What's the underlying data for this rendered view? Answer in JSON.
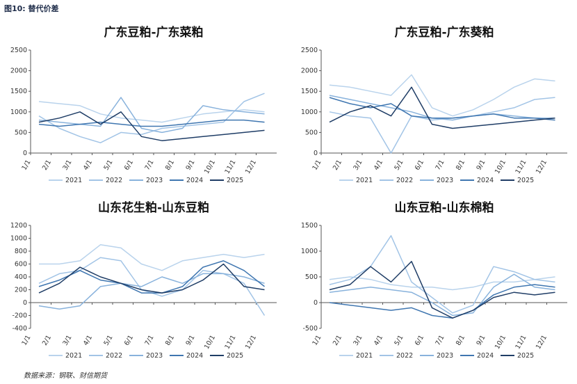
{
  "figure": {
    "caption": "图10: 替代价差",
    "source": "数据来源：钢联、财信期货"
  },
  "colors": {
    "s2021": "#b9d3ec",
    "s2022": "#a2c4e6",
    "s2023": "#88b2dc",
    "s2024": "#3f76b0",
    "s2025": "#1f3d66"
  },
  "chart_data": [
    {
      "type": "line",
      "title": "广东豆粕-广东菜粕",
      "categories": [
        "1/1",
        "2/1",
        "3/1",
        "4/1",
        "5/1",
        "6/1",
        "7/1",
        "8/1",
        "9/1",
        "10/1",
        "11/1",
        "12/1"
      ],
      "ylim": [
        0,
        2500
      ],
      "yticks": [
        0,
        500,
        1000,
        1500,
        2000,
        2500
      ],
      "series": [
        {
          "name": "2021",
          "values": [
            1250,
            1200,
            1150,
            950,
            850,
            800,
            750,
            850,
            950,
            1000,
            1050,
            1000
          ]
        },
        {
          "name": "2022",
          "values": [
            900,
            600,
            400,
            250,
            500,
            450,
            600,
            650,
            700,
            750,
            1250,
            1450
          ]
        },
        {
          "name": "2023",
          "values": [
            800,
            750,
            700,
            650,
            1350,
            600,
            500,
            600,
            1150,
            1050,
            1000,
            950
          ]
        },
        {
          "name": "2024",
          "values": [
            700,
            650,
            700,
            750,
            700,
            650,
            650,
            700,
            750,
            800,
            800,
            750
          ]
        },
        {
          "name": "2025",
          "values": [
            750,
            850,
            1000,
            700,
            1000,
            400,
            300,
            350,
            400,
            450,
            500,
            550
          ]
        }
      ]
    },
    {
      "type": "line",
      "title": "广东豆粕-广东葵粕",
      "categories": [
        "1/1",
        "2/1",
        "3/1",
        "4/1",
        "5/1",
        "6/1",
        "7/1",
        "8/1",
        "9/1",
        "10/1",
        "11/1",
        "12/1"
      ],
      "ylim": [
        0,
        2500
      ],
      "yticks": [
        0,
        500,
        1000,
        1500,
        2000,
        2500
      ],
      "series": [
        {
          "name": "2021",
          "values": [
            1650,
            1600,
            1500,
            1400,
            1900,
            1100,
            900,
            1050,
            1300,
            1600,
            1800,
            1750
          ]
        },
        {
          "name": "2022",
          "values": [
            1000,
            900,
            850,
            0,
            900,
            800,
            850,
            900,
            1000,
            1100,
            1300,
            1350
          ]
        },
        {
          "name": "2023",
          "values": [
            1400,
            1300,
            1200,
            1100,
            1000,
            850,
            800,
            900,
            950,
            900,
            850,
            850
          ]
        },
        {
          "name": "2024",
          "values": [
            1350,
            1200,
            1100,
            1200,
            900,
            850,
            850,
            900,
            950,
            850,
            850,
            800
          ]
        },
        {
          "name": "2025",
          "values": [
            750,
            1000,
            1150,
            900,
            1600,
            700,
            600,
            650,
            700,
            750,
            800,
            850
          ]
        }
      ]
    },
    {
      "type": "line",
      "title": "山东花生粕-山东豆粕",
      "categories": [
        "1/1",
        "2/1",
        "3/1",
        "4/1",
        "5/1",
        "6/1",
        "7/1",
        "8/1",
        "9/1",
        "10/1",
        "11/1",
        "12/1"
      ],
      "ylim": [
        -400,
        1200
      ],
      "yticks": [
        -400,
        -200,
        0,
        200,
        400,
        600,
        800,
        1000,
        1200
      ],
      "series": [
        {
          "name": "2021",
          "values": [
            600,
            600,
            650,
            900,
            850,
            600,
            500,
            650,
            700,
            750,
            700,
            750
          ]
        },
        {
          "name": "2022",
          "values": [
            300,
            450,
            500,
            700,
            650,
            200,
            100,
            200,
            500,
            450,
            300,
            -200
          ]
        },
        {
          "name": "2023",
          "values": [
            -50,
            -100,
            -50,
            250,
            300,
            250,
            400,
            300,
            450,
            450,
            400,
            300
          ]
        },
        {
          "name": "2024",
          "values": [
            250,
            350,
            500,
            350,
            300,
            150,
            150,
            250,
            550,
            650,
            500,
            250
          ]
        },
        {
          "name": "2025",
          "values": [
            150,
            300,
            550,
            400,
            300,
            200,
            150,
            200,
            350,
            600,
            250,
            200
          ]
        }
      ]
    },
    {
      "type": "line",
      "title": "山东豆粕-山东棉粕",
      "categories": [
        "1/1",
        "2/1",
        "3/1",
        "4/1",
        "5/1",
        "6/1",
        "7/1",
        "8/1",
        "9/1",
        "10/1",
        "11/1",
        "12/1"
      ],
      "ylim": [
        -500,
        1500
      ],
      "yticks": [
        -500,
        0,
        500,
        1000,
        1500
      ],
      "series": [
        {
          "name": "2021",
          "values": [
            450,
            500,
            450,
            350,
            300,
            300,
            250,
            300,
            400,
            400,
            450,
            500
          ]
        },
        {
          "name": "2022",
          "values": [
            350,
            450,
            700,
            1300,
            400,
            100,
            -200,
            -50,
            700,
            600,
            450,
            400
          ]
        },
        {
          "name": "2023",
          "values": [
            200,
            250,
            300,
            250,
            200,
            0,
            -250,
            -200,
            300,
            550,
            300,
            250
          ]
        },
        {
          "name": "2024",
          "values": [
            0,
            -50,
            -100,
            -150,
            -100,
            -250,
            -300,
            -150,
            150,
            300,
            350,
            300
          ]
        },
        {
          "name": "2025",
          "values": [
            250,
            350,
            700,
            400,
            800,
            -100,
            -300,
            -150,
            100,
            200,
            150,
            200
          ]
        }
      ]
    }
  ]
}
